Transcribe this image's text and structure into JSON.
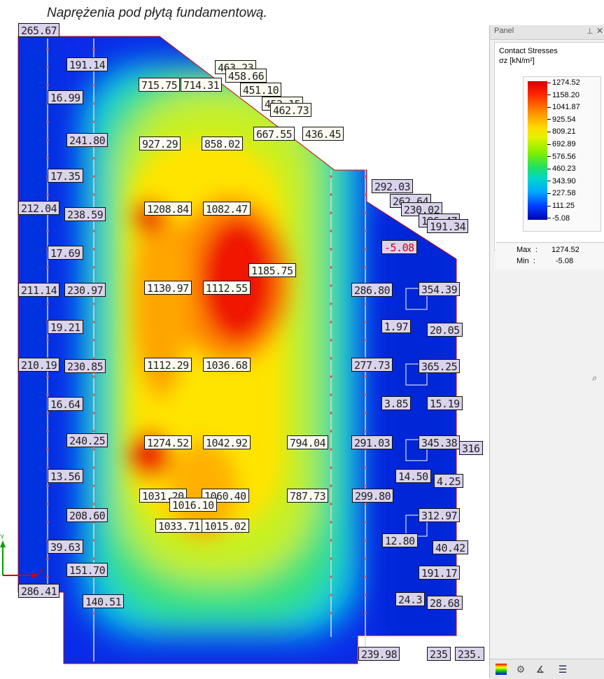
{
  "caption": "Naprężenia pod płytą fundamentową.",
  "panel": {
    "title": "Panel",
    "pin_icon": "pin-icon",
    "close_icon": "close-icon",
    "result_title": "Contact Stresses",
    "result_unit": "σz [kN/m²]",
    "legend_values": [
      "1274.52",
      "1158.20",
      "1041.87",
      "925.54",
      "809.21",
      "692.89",
      "576.56",
      "460.23",
      "343.90",
      "227.58",
      "111.25",
      "-5.08"
    ],
    "max_label": "Max  :",
    "max_value": "1274.52",
    "min_label": "Min  :",
    "min_value": "-5.08",
    "toolbar_icons": [
      "color-scale-icon",
      "results-icon",
      "angle-icon",
      "list-icon"
    ],
    "side_icon": "magnifier-icon"
  },
  "axis": {
    "y_label": "Y",
    "x_label": "X"
  },
  "values": [
    {
      "text": "265.67",
      "cls": "lo"
    },
    {
      "text": "191.14",
      "cls": "lo"
    },
    {
      "text": "16.99",
      "cls": "lo"
    },
    {
      "text": "241.80",
      "cls": "lo"
    },
    {
      "text": "17.35",
      "cls": "lo"
    },
    {
      "text": "212.04",
      "cls": "lo"
    },
    {
      "text": "238.59",
      "cls": "lo"
    },
    {
      "text": "17.69",
      "cls": "lo"
    },
    {
      "text": "211.14",
      "cls": "lo"
    },
    {
      "text": "230.97",
      "cls": "lo"
    },
    {
      "text": "19.21",
      "cls": "lo"
    },
    {
      "text": "210.19",
      "cls": "lo"
    },
    {
      "text": "230.85",
      "cls": "lo"
    },
    {
      "text": "16.64",
      "cls": "lo"
    },
    {
      "text": "240.25",
      "cls": "lo"
    },
    {
      "text": "13.56",
      "cls": "lo"
    },
    {
      "text": "208.60",
      "cls": "lo"
    },
    {
      "text": "39.63",
      "cls": "lo"
    },
    {
      "text": "151.70",
      "cls": "lo"
    },
    {
      "text": "286.41",
      "cls": "lo"
    },
    {
      "text": "140.51",
      "cls": "lo"
    },
    {
      "text": "715.75",
      "cls": "hi"
    },
    {
      "text": "714.31",
      "cls": "hi"
    },
    {
      "text": "463.23",
      "cls": "hi"
    },
    {
      "text": "458.66",
      "cls": "hi"
    },
    {
      "text": "451.10",
      "cls": "hi"
    },
    {
      "text": "452.15",
      "cls": "hi"
    },
    {
      "text": "462.73",
      "cls": "hi"
    },
    {
      "text": "927.29",
      "cls": "hi"
    },
    {
      "text": "858.02",
      "cls": "hi"
    },
    {
      "text": "667.55",
      "cls": "hi"
    },
    {
      "text": "436.45",
      "cls": "hi"
    },
    {
      "text": "1208.84",
      "cls": "hi"
    },
    {
      "text": "1082.47",
      "cls": "hi"
    },
    {
      "text": "1185.75",
      "cls": "hi"
    },
    {
      "text": "1130.97",
      "cls": "hi"
    },
    {
      "text": "1112.55",
      "cls": "hi"
    },
    {
      "text": "1112.29",
      "cls": "hi"
    },
    {
      "text": "1036.68",
      "cls": "hi"
    },
    {
      "text": "1274.52",
      "cls": "hi"
    },
    {
      "text": "1042.92",
      "cls": "hi"
    },
    {
      "text": "794.04",
      "cls": "hi"
    },
    {
      "text": "1031.20",
      "cls": "hi"
    },
    {
      "text": "1060.40",
      "cls": "hi"
    },
    {
      "text": "1016.10",
      "cls": "hi"
    },
    {
      "text": "787.73",
      "cls": "hi"
    },
    {
      "text": "1033.71",
      "cls": "hi"
    },
    {
      "text": "1015.02",
      "cls": "hi"
    },
    {
      "text": "292.03",
      "cls": "lo"
    },
    {
      "text": "262.64",
      "cls": "lo"
    },
    {
      "text": "230.02",
      "cls": "lo"
    },
    {
      "text": "196.47",
      "cls": "lo"
    },
    {
      "text": "191.34",
      "cls": "lo"
    },
    {
      "text": "-5.08",
      "cls": "neg"
    },
    {
      "text": "286.80",
      "cls": "lo"
    },
    {
      "text": "354.39",
      "cls": "lo"
    },
    {
      "text": "1.97",
      "cls": "lo"
    },
    {
      "text": "20.05",
      "cls": "lo"
    },
    {
      "text": "277.73",
      "cls": "lo"
    },
    {
      "text": "365.25",
      "cls": "lo"
    },
    {
      "text": "3.85",
      "cls": "lo"
    },
    {
      "text": "15.19",
      "cls": "lo"
    },
    {
      "text": "291.03",
      "cls": "lo"
    },
    {
      "text": "345.38",
      "cls": "lo"
    },
    {
      "text": "316",
      "cls": "lo"
    },
    {
      "text": "14.50",
      "cls": "lo"
    },
    {
      "text": "4.25",
      "cls": "lo"
    },
    {
      "text": "299.80",
      "cls": "lo"
    },
    {
      "text": "312.97",
      "cls": "lo"
    },
    {
      "text": "12.80",
      "cls": "lo"
    },
    {
      "text": "40.42",
      "cls": "lo"
    },
    {
      "text": "191.17",
      "cls": "lo"
    },
    {
      "text": "24.3",
      "cls": "lo"
    },
    {
      "text": "28.68",
      "cls": "lo"
    },
    {
      "text": "239.98",
      "cls": "lo"
    },
    {
      "text": "235",
      "cls": "lo"
    },
    {
      "text": "235.",
      "cls": "lo"
    }
  ]
}
